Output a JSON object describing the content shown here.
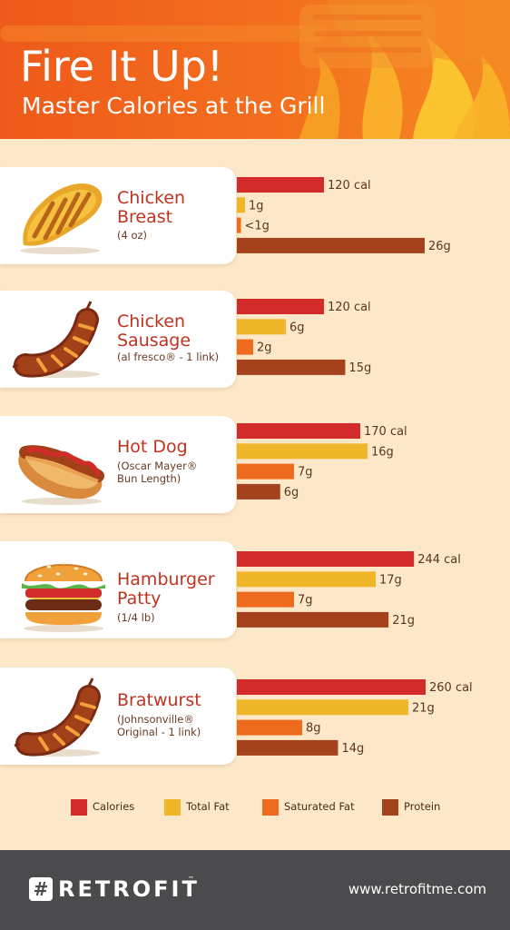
{
  "header": {
    "title": "Fire It Up!",
    "subtitle": "Master Calories at the Grill"
  },
  "foods": [
    {
      "icon": "grilled-chicken-breast-icon",
      "name_lines": [
        "Chicken",
        "Breast"
      ],
      "note_lines": [
        "(4 oz)"
      ]
    },
    {
      "icon": "chicken-sausage-icon",
      "name_lines": [
        "Chicken",
        "Sausage"
      ],
      "note_lines": [
        "(al fresco® - 1 link)"
      ]
    },
    {
      "icon": "hot-dog-icon",
      "name_lines": [
        "Hot Dog"
      ],
      "note_lines": [
        "(Oscar Mayer®",
        "Bun Length)"
      ]
    },
    {
      "icon": "hamburger-icon",
      "name_lines": [
        "Hamburger"
      ],
      "name_inline": "Patty",
      "note_inline": "(1/4 lb)"
    },
    {
      "icon": "bratwurst-icon",
      "name_lines": [
        "Bratwurst"
      ],
      "note_lines": [
        "(Johnsonville®",
        "Original - 1 link)"
      ]
    }
  ],
  "chart_data": {
    "type": "bar",
    "orientation": "horizontal",
    "categories": [
      "Chicken Breast (4 oz)",
      "Chicken Sausage (al fresco® - 1 link)",
      "Hot Dog (Oscar Mayer® Bun Length)",
      "Hamburger Patty (1/4 lb)",
      "Bratwurst (Johnsonville® Original - 1 link)"
    ],
    "series": [
      {
        "name": "Calories",
        "color": "#d32a2a",
        "values": [
          120,
          120,
          170,
          244,
          260
        ],
        "labels": [
          "120 cal",
          "120 cal",
          "170 cal",
          "244 cal",
          "260 cal"
        ]
      },
      {
        "name": "Total Fat",
        "color": "#f0b62a",
        "values": [
          1,
          6,
          16,
          17,
          21
        ],
        "labels": [
          "1g",
          "6g",
          "16g",
          "17g",
          "21g"
        ]
      },
      {
        "name": "Saturated Fat",
        "color": "#ee6b1d",
        "values": [
          0.5,
          2,
          7,
          7,
          8
        ],
        "labels": [
          "<1g",
          "2g",
          "7g",
          "7g",
          "8g"
        ]
      },
      {
        "name": "Protein",
        "color": "#a3421c",
        "values": [
          26,
          15,
          6,
          21,
          14
        ],
        "labels": [
          "26g",
          "15g",
          "6g",
          "21g",
          "14g"
        ]
      }
    ],
    "legend_position": "bottom"
  },
  "footer": {
    "brand_mark": "#",
    "brand": "RETROFIT",
    "trademark": "™",
    "website": "www.retrofitme.com"
  }
}
